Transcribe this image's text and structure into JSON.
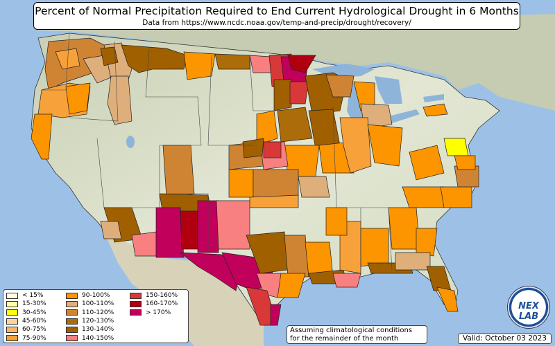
{
  "title": "Percent of Normal Precipitation Required to End Current Hydrological Drought in 6 Months",
  "subtitle": "Data from https://www.ncdc.noaa.gov/temp-and-precip/drought/recovery/",
  "legend": [
    {
      "label": "< 15%",
      "color": "#ffffe0"
    },
    {
      "label": "15-30%",
      "color": "#ffffa0"
    },
    {
      "label": "30-45%",
      "color": "#ffff00"
    },
    {
      "label": "45-60%",
      "color": "#fcd39b"
    },
    {
      "label": "60-75%",
      "color": "#fbb563"
    },
    {
      "label": "75-90%",
      "color": "#f7a13a"
    },
    {
      "label": "90-100%",
      "color": "#fd9500"
    },
    {
      "label": "100-110%",
      "color": "#dfaf7b"
    },
    {
      "label": "110-120%",
      "color": "#cf8434"
    },
    {
      "label": "120-130%",
      "color": "#ac6c0a"
    },
    {
      "label": "130-140%",
      "color": "#a06000"
    },
    {
      "label": "140-150%",
      "color": "#f98080"
    },
    {
      "label": "150-160%",
      "color": "#d83838"
    },
    {
      "label": "160-170%",
      "color": "#b00010"
    },
    {
      "label": "> 170%",
      "color": "#c0005a"
    }
  ],
  "note_line1": "Assuming climatological conditions",
  "note_line2": "for the remainder of the month",
  "valid": "Valid: October 03 2023",
  "logo_text": "NEXLAB",
  "colors": {
    "ocean": "#9dc1e6",
    "land": "#dde3cc",
    "lakes": "#8fb4da"
  }
}
